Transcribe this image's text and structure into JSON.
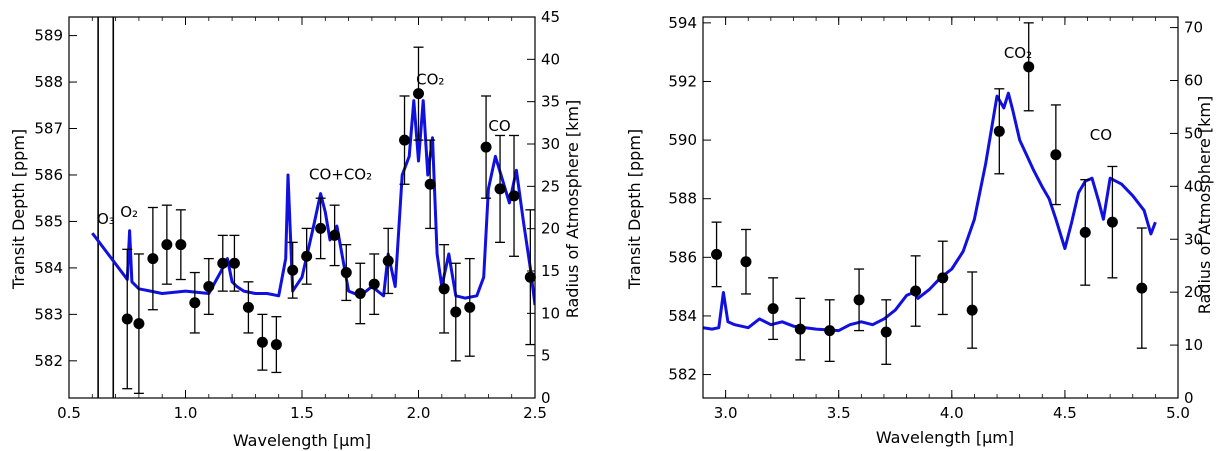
{
  "chart_data": [
    {
      "type": "line",
      "xlabel": "Wavelength [μm]",
      "ylabel": "Transit Depth [ppm]",
      "y2label": "Radius of Atmosphere [km]",
      "xlim": [
        0.5,
        2.5
      ],
      "ylim": [
        581.2,
        589.4
      ],
      "y2lim": [
        0,
        45
      ],
      "xticks": [
        "0.5",
        "1.0",
        "1.5",
        "2.0",
        "2.5"
      ],
      "yticks": [
        "582",
        "583",
        "584",
        "585",
        "586",
        "587",
        "588",
        "589"
      ],
      "y2ticks": [
        "0",
        "5",
        "10",
        "15",
        "20",
        "25",
        "30",
        "35",
        "40",
        "45"
      ],
      "grid": false,
      "line_color": "#1010e0",
      "marker_color": "#000000",
      "vlines": [
        0.625,
        0.69
      ],
      "annotations": [
        {
          "text": "O₃",
          "x": 0.62,
          "y": 584.95
        },
        {
          "text": "O₂",
          "x": 0.72,
          "y": 585.1
        },
        {
          "text": "CO+CO₂",
          "x": 1.53,
          "y": 585.9
        },
        {
          "text": "CO₂",
          "x": 1.99,
          "y": 587.95
        },
        {
          "text": "CO",
          "x": 2.3,
          "y": 586.95
        }
      ],
      "model": {
        "x": [
          0.6,
          0.63,
          0.66,
          0.69,
          0.72,
          0.75,
          0.76,
          0.77,
          0.8,
          0.85,
          0.9,
          1.0,
          1.1,
          1.15,
          1.18,
          1.2,
          1.22,
          1.25,
          1.3,
          1.35,
          1.4,
          1.43,
          1.44,
          1.46,
          1.5,
          1.55,
          1.58,
          1.6,
          1.62,
          1.65,
          1.7,
          1.75,
          1.8,
          1.85,
          1.87,
          1.9,
          1.93,
          1.96,
          1.98,
          2.0,
          2.02,
          2.04,
          2.06,
          2.08,
          2.1,
          2.13,
          2.16,
          2.2,
          2.25,
          2.28,
          2.3,
          2.33,
          2.36,
          2.39,
          2.42,
          2.45,
          2.48,
          2.5
        ],
        "y": [
          584.75,
          584.55,
          584.35,
          584.15,
          583.95,
          583.75,
          584.8,
          583.7,
          583.55,
          583.5,
          583.45,
          583.5,
          583.45,
          583.9,
          584.2,
          583.7,
          583.6,
          583.5,
          583.45,
          583.45,
          583.4,
          584.2,
          586.0,
          583.5,
          583.8,
          584.9,
          585.6,
          585.2,
          584.6,
          584.9,
          583.5,
          583.4,
          583.6,
          583.4,
          584.3,
          583.6,
          586.0,
          586.4,
          587.6,
          586.3,
          587.6,
          586.0,
          586.8,
          584.3,
          583.6,
          584.3,
          583.4,
          583.35,
          583.4,
          583.8,
          585.7,
          586.4,
          585.9,
          585.4,
          586.1,
          585.0,
          584.0,
          583.2
        ]
      },
      "points": [
        {
          "x": 0.75,
          "y": 582.9,
          "err": 1.5
        },
        {
          "x": 0.8,
          "y": 582.8,
          "err": 1.5
        },
        {
          "x": 0.86,
          "y": 584.2,
          "err": 1.1
        },
        {
          "x": 0.92,
          "y": 584.5,
          "err": 0.85
        },
        {
          "x": 0.98,
          "y": 584.5,
          "err": 0.75
        },
        {
          "x": 1.04,
          "y": 583.25,
          "err": 0.65
        },
        {
          "x": 1.1,
          "y": 583.6,
          "err": 0.6
        },
        {
          "x": 1.16,
          "y": 584.1,
          "err": 0.6
        },
        {
          "x": 1.21,
          "y": 584.1,
          "err": 0.6
        },
        {
          "x": 1.27,
          "y": 583.15,
          "err": 0.55
        },
        {
          "x": 1.33,
          "y": 582.4,
          "err": 0.6
        },
        {
          "x": 1.39,
          "y": 582.35,
          "err": 0.6
        },
        {
          "x": 1.46,
          "y": 583.95,
          "err": 0.6
        },
        {
          "x": 1.52,
          "y": 584.25,
          "err": 0.6
        },
        {
          "x": 1.58,
          "y": 584.85,
          "err": 0.65
        },
        {
          "x": 1.64,
          "y": 584.7,
          "err": 0.65
        },
        {
          "x": 1.69,
          "y": 583.9,
          "err": 0.6
        },
        {
          "x": 1.75,
          "y": 583.45,
          "err": 0.65
        },
        {
          "x": 1.81,
          "y": 583.65,
          "err": 0.65
        },
        {
          "x": 1.87,
          "y": 584.15,
          "err": 0.7
        },
        {
          "x": 1.94,
          "y": 586.75,
          "err": 0.95
        },
        {
          "x": 2.0,
          "y": 587.75,
          "err": 1.0
        },
        {
          "x": 2.05,
          "y": 585.8,
          "err": 0.95
        },
        {
          "x": 2.11,
          "y": 583.55,
          "err": 0.95
        },
        {
          "x": 2.16,
          "y": 583.05,
          "err": 1.05
        },
        {
          "x": 2.22,
          "y": 583.15,
          "err": 1.05
        },
        {
          "x": 2.29,
          "y": 586.6,
          "err": 1.1
        },
        {
          "x": 2.35,
          "y": 585.7,
          "err": 1.15
        },
        {
          "x": 2.41,
          "y": 585.55,
          "err": 1.3
        },
        {
          "x": 2.48,
          "y": 583.8,
          "err": 1.45
        }
      ]
    },
    {
      "type": "line",
      "xlabel": "Wavelength [μm]",
      "ylabel": "Transit Depth [ppm]",
      "y2label": "Radius of Atmosphere [km]",
      "xlim": [
        2.9,
        5.0
      ],
      "ylim": [
        581.2,
        594.2
      ],
      "y2lim": [
        0,
        72
      ],
      "xticks": [
        "3.0",
        "3.5",
        "4.0",
        "4.5",
        "5.0"
      ],
      "yticks": [
        "582",
        "584",
        "586",
        "588",
        "590",
        "592",
        "594"
      ],
      "y2ticks": [
        "0",
        "10",
        "20",
        "30",
        "40",
        "50",
        "60",
        "70"
      ],
      "grid": false,
      "line_color": "#1010e0",
      "marker_color": "#000000",
      "annotations": [
        {
          "text": "CO₂",
          "x": 4.23,
          "y": 592.8
        },
        {
          "text": "CO",
          "x": 4.61,
          "y": 590.0
        }
      ],
      "model": {
        "x": [
          2.9,
          2.94,
          2.97,
          2.99,
          3.01,
          3.04,
          3.1,
          3.15,
          3.2,
          3.25,
          3.3,
          3.4,
          3.5,
          3.55,
          3.6,
          3.65,
          3.7,
          3.75,
          3.8,
          3.83,
          3.85,
          3.9,
          3.95,
          4.0,
          4.05,
          4.1,
          4.15,
          4.2,
          4.23,
          4.25,
          4.27,
          4.3,
          4.33,
          4.36,
          4.4,
          4.43,
          4.46,
          4.5,
          4.53,
          4.56,
          4.59,
          4.62,
          4.65,
          4.67,
          4.7,
          4.75,
          4.8,
          4.85,
          4.88,
          4.9
        ],
        "y": [
          583.6,
          583.55,
          583.6,
          584.8,
          583.8,
          583.7,
          583.6,
          583.9,
          583.7,
          583.8,
          583.65,
          583.55,
          583.5,
          583.7,
          583.8,
          583.7,
          583.9,
          584.2,
          584.7,
          584.8,
          584.6,
          584.9,
          585.3,
          585.6,
          586.2,
          587.3,
          589.2,
          591.5,
          591.1,
          591.6,
          591.0,
          590.0,
          589.5,
          589.0,
          588.4,
          588.0,
          587.3,
          586.3,
          587.2,
          588.2,
          588.6,
          588.7,
          587.9,
          587.3,
          588.7,
          588.5,
          588.1,
          587.6,
          586.8,
          587.2
        ]
      },
      "points": [
        {
          "x": 2.96,
          "y": 586.1,
          "err": 1.1
        },
        {
          "x": 3.09,
          "y": 585.85,
          "err": 1.1
        },
        {
          "x": 3.21,
          "y": 584.25,
          "err": 1.05
        },
        {
          "x": 3.33,
          "y": 583.55,
          "err": 1.05
        },
        {
          "x": 3.46,
          "y": 583.5,
          "err": 1.05
        },
        {
          "x": 3.59,
          "y": 584.55,
          "err": 1.05
        },
        {
          "x": 3.71,
          "y": 583.45,
          "err": 1.1
        },
        {
          "x": 3.84,
          "y": 584.85,
          "err": 1.2
        },
        {
          "x": 3.96,
          "y": 585.3,
          "err": 1.25
        },
        {
          "x": 4.09,
          "y": 584.2,
          "err": 1.3
        },
        {
          "x": 4.21,
          "y": 590.3,
          "err": 1.45
        },
        {
          "x": 4.34,
          "y": 592.5,
          "err": 1.5
        },
        {
          "x": 4.46,
          "y": 589.5,
          "err": 1.7
        },
        {
          "x": 4.59,
          "y": 586.85,
          "err": 1.8
        },
        {
          "x": 4.71,
          "y": 587.2,
          "err": 1.9
        },
        {
          "x": 4.84,
          "y": 584.95,
          "err": 2.05
        }
      ]
    }
  ]
}
